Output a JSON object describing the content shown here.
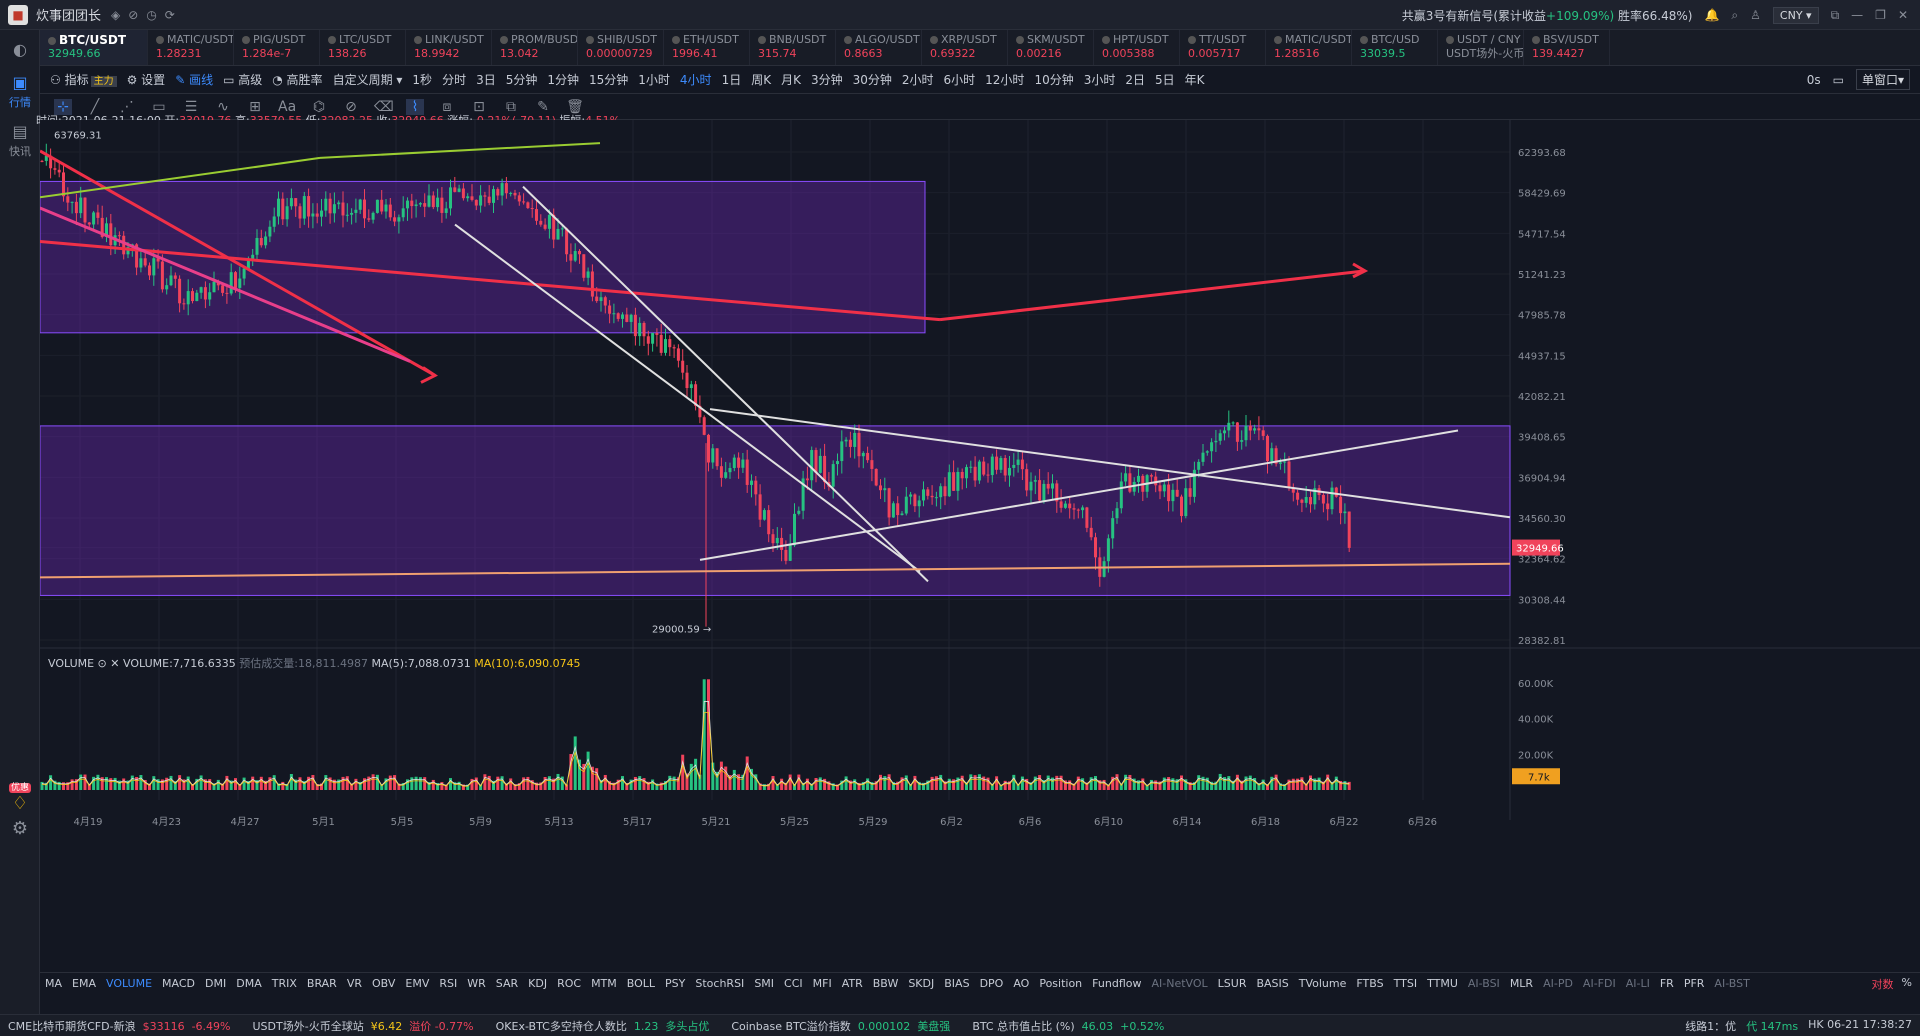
{
  "app": {
    "name": "炊事团团长"
  },
  "titlebar": {
    "signal": "共赢3号有新信号(累计收益",
    "signal_gain": "+109.09%)",
    "winrate": "胜率66.48%)",
    "currency": "CNY"
  },
  "sidebar": [
    {
      "label": "行情",
      "icon": "chart-icon"
    },
    {
      "label": "快讯",
      "icon": "news-icon"
    }
  ],
  "tickers": [
    {
      "name": "BTC/USDT",
      "price": "32949.66"
    },
    {
      "name": "MATIC/USDT",
      "price": "1.28231"
    },
    {
      "name": "PIG/USDT",
      "price": "1.284e-7"
    },
    {
      "name": "LTC/USDT",
      "price": "138.26"
    },
    {
      "name": "LINK/USDT",
      "price": "18.9942"
    },
    {
      "name": "PROM/BUSD",
      "price": "13.042"
    },
    {
      "name": "SHIB/USDT",
      "price": "0.00000729"
    },
    {
      "name": "ETH/USDT",
      "price": "1996.41"
    },
    {
      "name": "BNB/USDT",
      "price": "315.74"
    },
    {
      "name": "ALGO/USDT",
      "price": "0.8663"
    },
    {
      "name": "XRP/USDT",
      "price": "0.69322"
    },
    {
      "name": "SKM/USDT",
      "price": "0.00216"
    },
    {
      "name": "HPT/USDT",
      "price": "0.005388"
    },
    {
      "name": "TT/USDT",
      "price": "0.005717"
    },
    {
      "name": "MATIC/USDT",
      "price": "1.28516"
    },
    {
      "name": "BTC/USD",
      "price": "33039.5"
    },
    {
      "name": "USDT / CNY",
      "price": "USDT场外-火币全"
    },
    {
      "name": "BSV/USDT",
      "price": "139.4427"
    }
  ],
  "toolbar": {
    "indicator": "指标",
    "main": "主力",
    "settings": "设置",
    "draw": "画线",
    "advanced": "高级",
    "winrate": "高胜率",
    "custom": "自定义周期",
    "periods": [
      "1秒",
      "分时",
      "3日",
      "5分钟",
      "1分钟",
      "15分钟",
      "1小时",
      "4小时",
      "1日",
      "周K",
      "月K",
      "3分钟",
      "30分钟",
      "2小时",
      "6小时",
      "12小时",
      "10分钟",
      "3小时",
      "2日",
      "5日",
      "年K"
    ],
    "active_period": "4小时",
    "zero_s": "0s",
    "window": "单窗口"
  },
  "ohlc": {
    "time": "时间:2021-06-21 16:00",
    "open_l": "开:",
    "open": "33019.76",
    "high_l": "高:",
    "high": "33570.55",
    "low_l": "低:",
    "low": "32082.25",
    "close_l": "收:",
    "close": "32949.66",
    "chg_l": "涨幅:",
    "chg": "-0.21%(-70.11)",
    "amp_l": "振幅:",
    "amp": "4.51%"
  },
  "chart_data": {
    "type": "candlestick",
    "symbol": "BTC/USDT",
    "interval": "4小时",
    "y_ticks": [
      "62393.68",
      "58429.69",
      "54717.54",
      "51241.23",
      "47985.78",
      "44937.15",
      "42082.21",
      "39408.65",
      "36904.94",
      "34560.30",
      "32949.66",
      "32364.62",
      "30308.44",
      "28382.81"
    ],
    "x_ticks": [
      "4月19",
      "4月23",
      "4月27",
      "5月1",
      "5月5",
      "5月9",
      "5月13",
      "5月17",
      "5月21",
      "5月25",
      "5月29",
      "6月2",
      "6月6",
      "6月10",
      "6月14",
      "6月18",
      "6月22",
      "6月26"
    ],
    "annotations": {
      "high": "63769.31",
      "low": "29000.59 →"
    },
    "current_price": "32949.66",
    "volume": {
      "label": "VOLUME",
      "value_l": "VOLUME:",
      "value": "7,716.6335",
      "pred_l": "预估成交量:",
      "pred": "18,811.4987",
      "ma5_l": "MA(5):",
      "ma5": "7,088.0731",
      "ma10_l": "MA(10):",
      "ma10": "6,090.0745",
      "y_ticks": [
        "60.00K",
        "40.00K",
        "20.00K",
        "7.7k"
      ]
    }
  },
  "indicators": [
    "MA",
    "EMA",
    "VOLUME",
    "MACD",
    "DMI",
    "DMA",
    "TRIX",
    "BRAR",
    "VR",
    "OBV",
    "EMV",
    "RSI",
    "WR",
    "SAR",
    "KDJ",
    "ROC",
    "MTM",
    "BOLL",
    "PSY",
    "StochRSI",
    "SMI",
    "CCI",
    "MFI",
    "ATR",
    "BBW",
    "SKDJ",
    "BIAS",
    "DPO",
    "AO",
    "Position",
    "Fundflow",
    "AI-NetVOL",
    "LSUR",
    "BASIS",
    "TVolume",
    "FTBS",
    "TTSI",
    "TTMU",
    "AI-BSI",
    "MLR",
    "AI-PD",
    "AI-FDI",
    "AI-LI",
    "FR",
    "PFR",
    "AI-BST"
  ],
  "axis_mode": {
    "log": "对数",
    "pct": "%"
  },
  "status": [
    {
      "name": "CME比特币期货CFD-新浪",
      "v1": "$33116",
      "v2": "-6.49%"
    },
    {
      "name": "USDT场外-火币全球站",
      "v1": "¥6.42",
      "v2": "溢价 -0.77%"
    },
    {
      "name": "OKEx-BTC多空持仓人数比",
      "v1": "1.23",
      "v2": "多头占优"
    },
    {
      "name": "Coinbase BTC溢价指数",
      "v1": "0.000102",
      "v2": "美盘强"
    },
    {
      "name": "BTC 总市值占比 (%)",
      "v1": "46.03",
      "v2": "+0.52%"
    }
  ],
  "status_right": {
    "line": "线路1：优",
    "latency": "代 147ms",
    "clock": "HK 06-21 17:38:27"
  },
  "promo": "优惠"
}
